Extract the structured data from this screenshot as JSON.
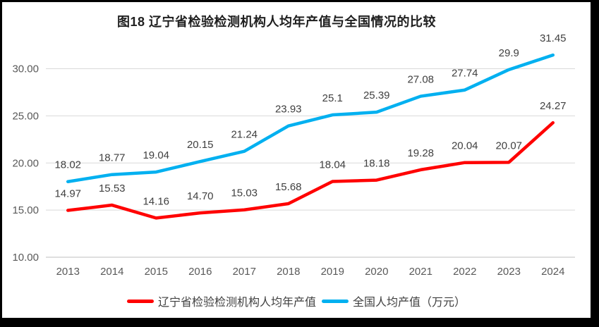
{
  "chart_data": {
    "type": "line",
    "title": "图18 辽宁省检验检测机构人均年产值与全国情况的比较",
    "categories": [
      "2013",
      "2014",
      "2015",
      "2016",
      "2017",
      "2018",
      "2019",
      "2020",
      "2021",
      "2022",
      "2023",
      "2024"
    ],
    "series": [
      {
        "name": "辽宁省检验检测机构人均年产值",
        "color": "#FF0000",
        "values": [
          14.97,
          15.53,
          14.16,
          14.7,
          15.03,
          15.68,
          18.04,
          18.18,
          19.28,
          20.04,
          20.07,
          24.27
        ],
        "labels": [
          "14.97",
          "15.53",
          "14.16",
          "14.70",
          "15.03",
          "15.68",
          "18.04",
          "18.18",
          "19.28",
          "20.04",
          "20.07",
          "24.27"
        ]
      },
      {
        "name": "全国人均产值（万元）",
        "color": "#00B0F0",
        "values": [
          18.02,
          18.77,
          19.04,
          20.15,
          21.24,
          23.93,
          25.1,
          25.39,
          27.08,
          27.74,
          29.9,
          31.45
        ],
        "labels": [
          "18.02",
          "18.77",
          "19.04",
          "20.15",
          "21.24",
          "23.93",
          "25.1",
          "25.39",
          "27.08",
          "27.74",
          "29.9",
          "31.45"
        ]
      }
    ],
    "xlabel": "",
    "ylabel": "",
    "y_axis": {
      "ticks": [
        "10.00",
        "15.00",
        "20.00",
        "25.00",
        "30.00"
      ],
      "min": 10,
      "max": 32.5
    },
    "grid": true,
    "legend_position": "bottom",
    "colors": {
      "gridline": "#D9D9D9",
      "axis_line": "#BFBFBF",
      "tick_text": "#595959",
      "label_text": "#404040"
    }
  }
}
